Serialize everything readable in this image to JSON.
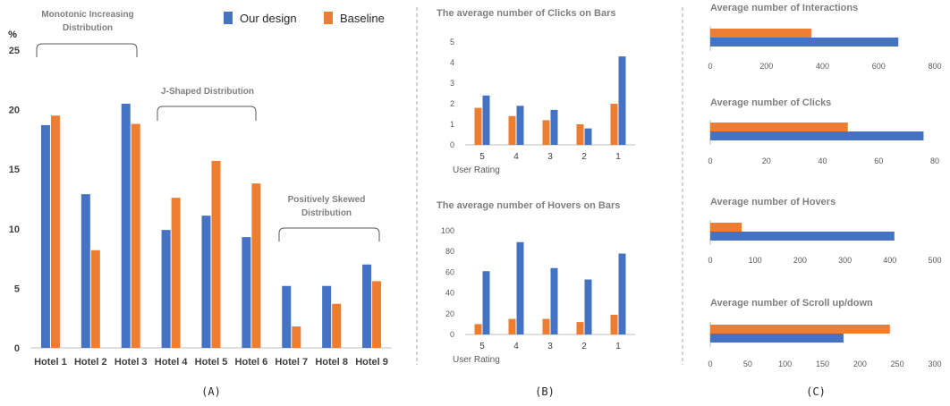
{
  "colors": {
    "our_design": "#4472C4",
    "baseline": "#ED7D31",
    "title_gray": "#7F7F7F",
    "tick_gray": "#595959",
    "axis": "#BFBFBF",
    "divider": "#A6A6A6"
  },
  "panel_labels": [
    "(A)",
    "(B)",
    "(C)"
  ],
  "chart_data": [
    {
      "id": "A",
      "type": "bar",
      "ylabel": "%",
      "ylim": [
        0,
        25
      ],
      "yticks": [
        0,
        5,
        10,
        15,
        20,
        25
      ],
      "categories": [
        "Hotel 1",
        "Hotel 2",
        "Hotel 3",
        "Hotel 4",
        "Hotel 5",
        "Hotel 6",
        "Hotel 7",
        "Hotel 8",
        "Hotel 9"
      ],
      "series": [
        {
          "name": "Our design",
          "values": [
            18.7,
            12.9,
            20.5,
            9.9,
            11.1,
            9.3,
            5.2,
            5.2,
            7.0
          ]
        },
        {
          "name": "Baseline",
          "values": [
            19.5,
            8.2,
            18.8,
            12.6,
            15.7,
            13.8,
            1.8,
            3.7,
            5.6
          ]
        }
      ],
      "legend": "top-right",
      "annotations": [
        "Monotonic Increasing Distribution",
        "J-Shaped Distribution",
        "Positively Skewed Distribution"
      ],
      "annotation_lines": [
        [
          "Monotonic Increasing",
          "Distribution"
        ],
        [
          "J-Shaped Distribution"
        ],
        [
          "Positively Skewed",
          "Distribution"
        ]
      ]
    },
    {
      "id": "B1",
      "type": "bar",
      "title": "The average number of Clicks on Bars",
      "xlabel": "User Rating",
      "ylim": [
        0,
        5
      ],
      "yticks": [
        0,
        1,
        2,
        3,
        4,
        5
      ],
      "categories": [
        "5",
        "4",
        "3",
        "2",
        "1"
      ],
      "series": [
        {
          "name": "Baseline",
          "values": [
            1.8,
            1.4,
            1.2,
            1.0,
            2.0
          ]
        },
        {
          "name": "Our design",
          "values": [
            2.4,
            1.9,
            1.7,
            0.8,
            4.3
          ]
        }
      ]
    },
    {
      "id": "B2",
      "type": "bar",
      "title": "The average number of Hovers on Bars",
      "xlabel": "User Rating",
      "ylim": [
        0,
        100
      ],
      "yticks": [
        0,
        20,
        40,
        60,
        80,
        100
      ],
      "categories": [
        "5",
        "4",
        "3",
        "2",
        "1"
      ],
      "series": [
        {
          "name": "Baseline",
          "values": [
            10,
            15,
            15,
            12,
            19
          ]
        },
        {
          "name": "Our design",
          "values": [
            61,
            89,
            64,
            53,
            78
          ]
        }
      ]
    },
    {
      "id": "C1",
      "type": "bar",
      "orientation": "horizontal",
      "title": "Average number of Interactions",
      "xlim": [
        0,
        800
      ],
      "xticks": [
        0,
        200,
        400,
        600,
        800
      ],
      "series": [
        {
          "name": "Baseline",
          "value": 360
        },
        {
          "name": "Our design",
          "value": 670
        }
      ]
    },
    {
      "id": "C2",
      "type": "bar",
      "orientation": "horizontal",
      "title": "Average number of Clicks",
      "xlim": [
        0,
        80
      ],
      "xticks": [
        0,
        20,
        40,
        60,
        80
      ],
      "series": [
        {
          "name": "Baseline",
          "value": 49
        },
        {
          "name": "Our design",
          "value": 76
        }
      ]
    },
    {
      "id": "C3",
      "type": "bar",
      "orientation": "horizontal",
      "title": "Average number of Hovers",
      "xlim": [
        0,
        500
      ],
      "xticks": [
        0,
        100,
        200,
        300,
        400,
        500
      ],
      "series": [
        {
          "name": "Baseline",
          "value": 70
        },
        {
          "name": "Our design",
          "value": 410
        }
      ]
    },
    {
      "id": "C4",
      "type": "bar",
      "orientation": "horizontal",
      "title": "Average number of Scroll up/down",
      "xlim": [
        0,
        300
      ],
      "xticks": [
        0,
        50,
        100,
        150,
        200,
        250,
        300
      ],
      "series": [
        {
          "name": "Baseline",
          "value": 240
        },
        {
          "name": "Our design",
          "value": 178
        }
      ]
    }
  ]
}
